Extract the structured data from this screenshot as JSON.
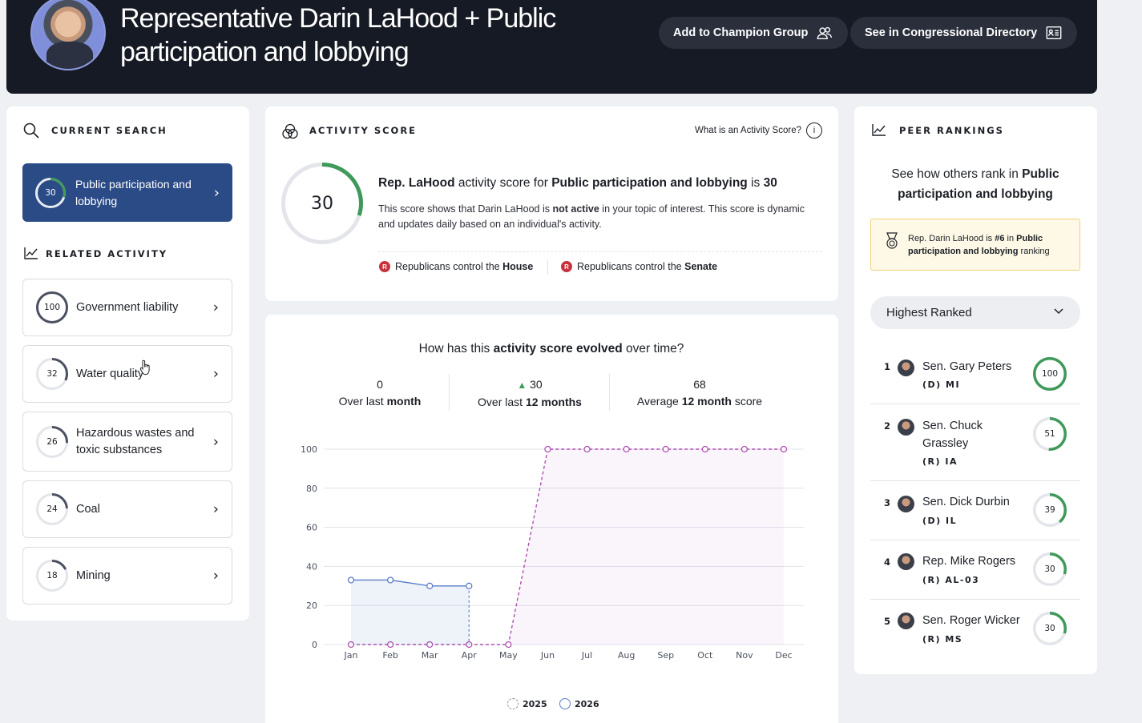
{
  "header": {
    "title": "Representative Darin LaHood + Public participation and lobbying",
    "champion_btn": "Add to Champion Group",
    "directory_btn": "See in Congressional Directory"
  },
  "current_search": {
    "title": "CURRENT SEARCH",
    "item": {
      "score": 30,
      "score_label": "30",
      "label": "Public participation and lobbying"
    }
  },
  "related": {
    "title": "RELATED ACTIVITY",
    "items": [
      {
        "score": 100,
        "score_label": "100",
        "label": "Government liability"
      },
      {
        "score": 32,
        "score_label": "32",
        "label": "Water quality"
      },
      {
        "score": 26,
        "score_label": "26",
        "label": "Hazardous wastes and toxic substances"
      },
      {
        "score": 24,
        "score_label": "24",
        "label": "Coal"
      },
      {
        "score": 18,
        "score_label": "18",
        "label": "Mining"
      }
    ]
  },
  "activity": {
    "title": "ACTIVITY SCORE",
    "what_link": "What is an Activity Score?",
    "score": 30,
    "score_label": "30",
    "head_1": "Rep. LaHood",
    "head_2": " activity score for ",
    "head_3": "Public participation and lobbying",
    "head_4": " is ",
    "head_5": "30",
    "desc_1": "This score shows that Darin LaHood is ",
    "desc_2": "not active",
    "desc_3": " in your topic of interest. This score is dynamic and updates daily based on an individual's activity.",
    "house_pre": "Republicans control the ",
    "house": "House",
    "senate_pre": "Republicans control the ",
    "senate": "Senate",
    "party_letter": "R"
  },
  "evolution": {
    "q_1": "How has this ",
    "q_2": "activity score evolved",
    "q_3": " over time?",
    "stats": [
      {
        "value": "0",
        "l1": "Over last ",
        "l2": "month",
        "l3": ""
      },
      {
        "value": "30",
        "l1": "Over last ",
        "l2": "12 months",
        "l3": ""
      },
      {
        "value": "68",
        "l1": "Average ",
        "l2": "12 month",
        "l3": " score"
      }
    ]
  },
  "chart_data": {
    "type": "line",
    "categories": [
      "Jan",
      "Feb",
      "Mar",
      "Apr",
      "May",
      "Jun",
      "Jul",
      "Aug",
      "Sep",
      "Oct",
      "Nov",
      "Dec"
    ],
    "ylim": [
      0,
      100
    ],
    "yticks": [
      0,
      20,
      40,
      60,
      80,
      100
    ],
    "series": [
      {
        "name": "2025",
        "color": "#b04fb3",
        "style": "dashed",
        "values": [
          0,
          0,
          0,
          0,
          0,
          100,
          100,
          100,
          100,
          100,
          100,
          100
        ]
      },
      {
        "name": "2026",
        "color": "#5b7fc7",
        "style": "solid",
        "values": [
          33,
          33,
          30,
          30,
          null,
          null,
          null,
          null,
          null,
          null,
          null,
          null
        ]
      }
    ]
  },
  "peers": {
    "title": "PEER RANKINGS",
    "intro_1": "See how others rank in ",
    "intro_2": "Public participation and lobbying",
    "notice_1": "Rep. Darin LaHood is ",
    "notice_2": "#6",
    "notice_3": " in ",
    "notice_4": "Public participation and lobbying",
    "notice_5": " ranking",
    "select_value": "Highest Ranked",
    "rows": [
      {
        "rank": "1",
        "name": "Sen. Gary Peters",
        "party": "(D) MI",
        "score": 100,
        "score_label": "100"
      },
      {
        "rank": "2",
        "name": "Sen. Chuck Grassley",
        "party": "(R) IA",
        "score": 51,
        "score_label": "51"
      },
      {
        "rank": "3",
        "name": "Sen. Dick Durbin",
        "party": "(D) IL",
        "score": 39,
        "score_label": "39"
      },
      {
        "rank": "4",
        "name": "Rep. Mike Rogers",
        "party": "(R) AL-03",
        "score": 30,
        "score_label": "30"
      },
      {
        "rank": "5",
        "name": "Sen. Roger Wicker",
        "party": "(R) MS",
        "score": 30,
        "score_label": "30"
      }
    ]
  },
  "colors": {
    "ring_green": "#3f9a5a",
    "ring_track": "#e3e5ea",
    "accent_blue": "#2b4b86"
  }
}
